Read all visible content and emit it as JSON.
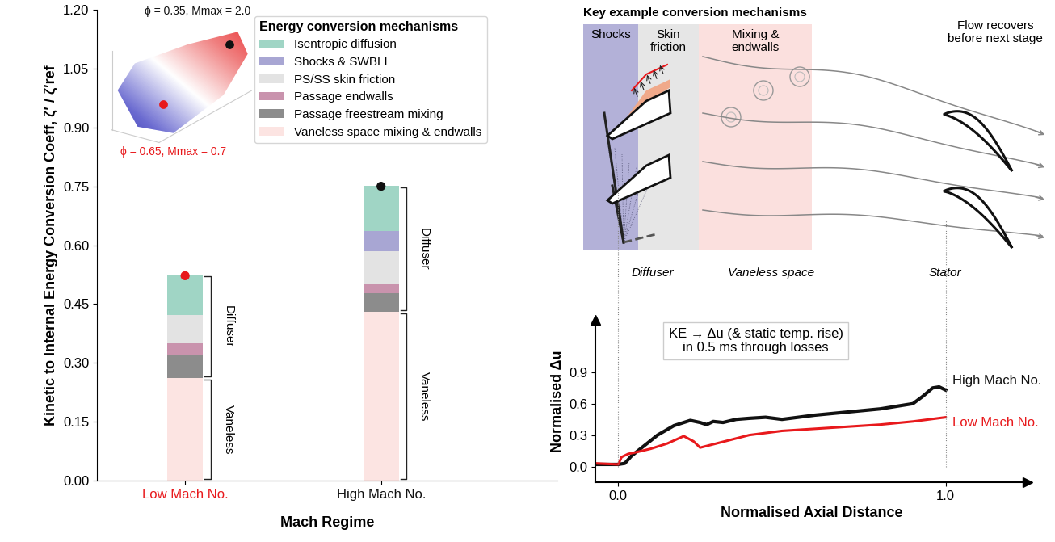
{
  "chart_data": [
    {
      "type": "bar",
      "stacked": true,
      "categories": [
        "Low Mach No.",
        "High Mach No."
      ],
      "xlabel": "Mach Regime",
      "ylabel": "Kinetic to Internal Energy Conversion Coeff, ζ′ / ζ′ref",
      "ylim": [
        0,
        1.2
      ],
      "yticks": [
        {
          "value": 0,
          "label": "0.00"
        },
        {
          "value": 0.15,
          "label": "0.15"
        },
        {
          "value": 0.3,
          "label": "0.30"
        },
        {
          "value": 0.45,
          "label": "0.45"
        },
        {
          "value": 0.6,
          "label": "0.60"
        },
        {
          "value": 0.75,
          "label": "0.75"
        },
        {
          "value": 0.9,
          "label": "0.90"
        },
        {
          "value": 1.05,
          "label": "1.05"
        },
        {
          "value": 1.2,
          "label": "1.20"
        }
      ],
      "legend": "upper right",
      "legend_title": "Energy conversion mechanisms",
      "series": [
        {
          "name": "Vaneless space mixing & endwalls",
          "color": "#fce4e2",
          "values": [
            0.262,
            0.43
          ]
        },
        {
          "name": "Passage freestream mixing",
          "color": "#8c8c8c",
          "values": [
            0.06,
            0.048
          ]
        },
        {
          "name": "Passage endwalls",
          "color": "#c993ad",
          "values": [
            0.028,
            0.025
          ]
        },
        {
          "name": "PS/SS skin friction",
          "color": "#e3e3e3",
          "values": [
            0.072,
            0.082
          ]
        },
        {
          "name": "Shocks & SWBLI",
          "color": "#a8a6d3",
          "values": [
            0,
            0.05
          ]
        },
        {
          "name": "Isentropic diffusion",
          "color": "#a0d5c5",
          "values": [
            0.103,
            0.117
          ]
        }
      ],
      "bracket_labels": [
        "Vaneless",
        "Diffuser"
      ],
      "points": {
        "values": [
          0.522,
          0.75
        ],
        "colors": [
          "#e8191c",
          "#111111"
        ]
      },
      "inset": {
        "annotations": [
          {
            "text": "ϕ = 0.35, Mmax = 2.0",
            "color": "#111111"
          },
          {
            "text": "ϕ = 0.65, Mmax = 0.7",
            "color": "#e8191c"
          }
        ]
      }
    },
    {
      "type": "line",
      "xlabel": "Normalised Axial Distance",
      "ylabel": "Normalised Δu",
      "xlim": [
        -0.07,
        1.25
      ],
      "xticks": [
        {
          "value": 0,
          "label": "0.0"
        },
        {
          "value": 1,
          "label": "1.0"
        }
      ],
      "ylim": [
        -0.15,
        1.4
      ],
      "yticks": [
        {
          "value": 0,
          "label": "0.0"
        },
        {
          "value": 0.3,
          "label": "0.3"
        },
        {
          "value": 0.6,
          "label": "0.6"
        },
        {
          "value": 0.9,
          "label": "0.9"
        }
      ],
      "annotation": "KE → Δu (& static temp. rise)\nin 0.5 ms through losses",
      "series": [
        {
          "name": "High Mach No.",
          "color": "#111111",
          "x": [
            -0.07,
            0.0,
            0.02,
            0.04,
            0.08,
            0.12,
            0.17,
            0.22,
            0.25,
            0.27,
            0.29,
            0.32,
            0.36,
            0.4,
            0.45,
            0.5,
            0.55,
            0.6,
            0.7,
            0.8,
            0.86,
            0.9,
            0.93,
            0.96,
            0.98,
            1.0
          ],
          "values": [
            0.02,
            0.02,
            0.03,
            0.1,
            0.2,
            0.3,
            0.39,
            0.44,
            0.42,
            0.4,
            0.43,
            0.42,
            0.45,
            0.46,
            0.47,
            0.45,
            0.47,
            0.49,
            0.52,
            0.55,
            0.58,
            0.6,
            0.67,
            0.75,
            0.76,
            0.73
          ]
        },
        {
          "name": "Low Mach No.",
          "color": "#e8191c",
          "x": [
            -0.07,
            0.0,
            0.01,
            0.03,
            0.06,
            0.1,
            0.15,
            0.2,
            0.23,
            0.25,
            0.3,
            0.4,
            0.5,
            0.6,
            0.7,
            0.8,
            0.9,
            1.0
          ],
          "values": [
            0.03,
            0.02,
            0.09,
            0.12,
            0.14,
            0.17,
            0.22,
            0.29,
            0.24,
            0.18,
            0.22,
            0.3,
            0.34,
            0.36,
            0.38,
            0.4,
            0.43,
            0.47
          ]
        }
      ]
    }
  ],
  "diagram": {
    "title": "Key example conversion mechanisms",
    "regions": [
      "Shocks",
      "Skin\nfriction",
      "Mixing &\nendwalls"
    ],
    "stations": [
      "Diffuser",
      "Vaneless space",
      "Stator"
    ],
    "note": "Flow recovers\nbefore next stage"
  }
}
